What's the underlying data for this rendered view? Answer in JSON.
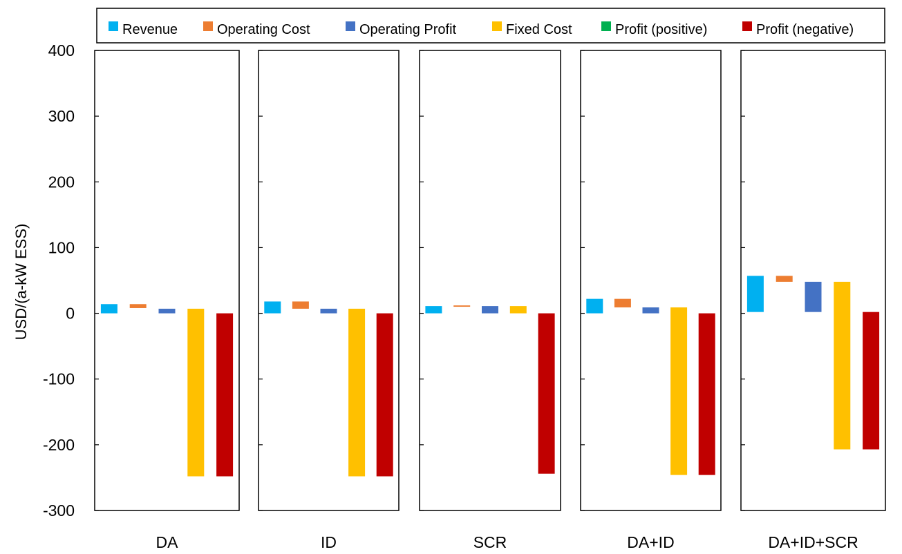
{
  "chart_data": {
    "type": "waterfall",
    "ylabel": "USD/(a-kW ESS)",
    "ylim": [
      -300,
      400
    ],
    "yticks": [
      400,
      300,
      200,
      100,
      0,
      -100,
      -200,
      -300
    ],
    "legend_position": "top",
    "legend": [
      {
        "name": "Revenue",
        "color": "#00b0f0"
      },
      {
        "name": "Operating Cost",
        "color": "#ed7d31"
      },
      {
        "name": "Operating Profit",
        "color": "#4472c4"
      },
      {
        "name": "Fixed Cost",
        "color": "#ffc000"
      },
      {
        "name": "Profit (positive)",
        "color": "#00b050"
      },
      {
        "name": "Profit (negative)",
        "color": "#c00000"
      }
    ],
    "panels": [
      {
        "name": "DA",
        "bars": [
          {
            "series": "Revenue",
            "from": 0,
            "to": 14
          },
          {
            "series": "Operating Cost",
            "from": 8,
            "to": 14
          },
          {
            "series": "Operating Profit",
            "from": 0,
            "to": 7
          },
          {
            "series": "Fixed Cost",
            "from": -248,
            "to": 7
          },
          {
            "series": "Profit (negative)",
            "from": -248,
            "to": 0
          }
        ]
      },
      {
        "name": "ID",
        "bars": [
          {
            "series": "Revenue",
            "from": 0,
            "to": 18
          },
          {
            "series": "Operating Cost",
            "from": 7,
            "to": 18
          },
          {
            "series": "Operating Profit",
            "from": 0,
            "to": 7
          },
          {
            "series": "Fixed Cost",
            "from": -248,
            "to": 7
          },
          {
            "series": "Profit (negative)",
            "from": -248,
            "to": 0
          }
        ]
      },
      {
        "name": "SCR",
        "bars": [
          {
            "series": "Revenue",
            "from": 0,
            "to": 11
          },
          {
            "series": "Operating Cost",
            "from": 10,
            "to": 12
          },
          {
            "series": "Operating Profit",
            "from": 0,
            "to": 11
          },
          {
            "series": "Fixed Cost",
            "from": 0,
            "to": 11
          },
          {
            "series": "Profit (negative)",
            "from": -244,
            "to": 0
          }
        ]
      },
      {
        "name": "DA+ID",
        "bars": [
          {
            "series": "Revenue",
            "from": 0,
            "to": 22
          },
          {
            "series": "Operating Cost",
            "from": 9,
            "to": 22
          },
          {
            "series": "Operating Profit",
            "from": 0,
            "to": 9
          },
          {
            "series": "Fixed Cost",
            "from": -246,
            "to": 9
          },
          {
            "series": "Profit (negative)",
            "from": -246,
            "to": 0
          }
        ]
      },
      {
        "name": "DA+ID+SCR",
        "bars": [
          {
            "series": "Revenue",
            "from": 2,
            "to": 57
          },
          {
            "series": "Operating Cost",
            "from": 48,
            "to": 57
          },
          {
            "series": "Operating Profit",
            "from": 2,
            "to": 48
          },
          {
            "series": "Fixed Cost",
            "from": -207,
            "to": 48
          },
          {
            "series": "Profit (negative)",
            "from": -207,
            "to": 2
          }
        ]
      }
    ]
  }
}
